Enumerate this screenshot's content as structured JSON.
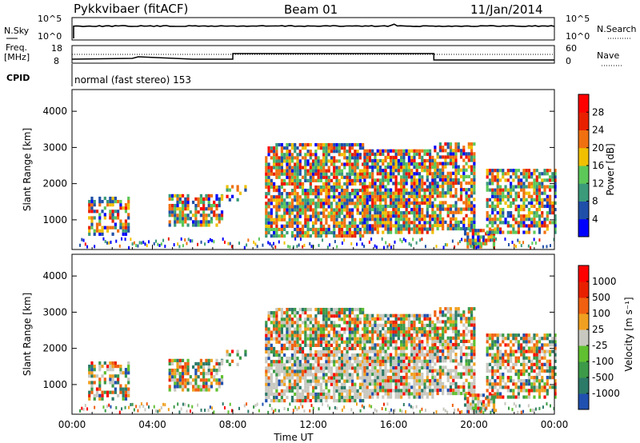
{
  "header": {
    "radar": "Pykkvibaer (fitACF)",
    "beam": "Beam 01",
    "date": "11/Jan/2014"
  },
  "strip": {
    "nsky_label": "N.Sky",
    "nsky_ticks": [
      "10^5",
      "10^0"
    ],
    "nsearch_label": "N.Search",
    "nsearch_ticks": [
      "10^5",
      "10^0"
    ],
    "freq_label_1": "Freq.",
    "freq_label_2": "[MHz]",
    "freq_ticks": [
      "18",
      "8"
    ],
    "nave_label": "Nave",
    "nave_ticks": [
      "60",
      "0"
    ],
    "cpid_label": "CPID",
    "cpid_text": "normal (fast stereo) 153"
  },
  "chart_data": [
    {
      "type": "heatmap",
      "panel": "power",
      "xlabel": "Time UT",
      "ylabel": "Slant Range [km]",
      "ylim": [
        180,
        4600
      ],
      "xlim": [
        0,
        24
      ],
      "yticks": [
        "1000",
        "2000",
        "3000",
        "4000"
      ],
      "colorbar_label": "Power [dB]",
      "colorbar_ticks": [
        "28",
        "24",
        "20",
        "16",
        "12",
        "8",
        "4"
      ],
      "colorbar_colors": [
        "#0000ff",
        "#1f4fa8",
        "#3a9a7a",
        "#5cc858",
        "#f0c000",
        "#f07010",
        "#e82000",
        "#ff0000"
      ],
      "regions": [
        {
          "t": [
            0.8,
            2.8
          ],
          "r": [
            700,
            1700
          ],
          "level": "mixed"
        },
        {
          "t": [
            4.8,
            7.5
          ],
          "r": [
            900,
            1800
          ],
          "level": "mixed"
        },
        {
          "t": [
            9.5,
            20.0
          ],
          "r": [
            700,
            3200
          ],
          "level": "strong"
        },
        {
          "t": [
            20.5,
            24.0
          ],
          "r": [
            700,
            2500
          ],
          "level": "strong"
        }
      ]
    },
    {
      "type": "heatmap",
      "panel": "velocity",
      "xlabel": "Time UT",
      "ylabel": "Slant Range [km]",
      "ylim": [
        180,
        4600
      ],
      "xlim": [
        0,
        24
      ],
      "yticks": [
        "1000",
        "2000",
        "3000",
        "4000"
      ],
      "xticks": [
        "00:00",
        "04:00",
        "08:00",
        "12:00",
        "16:00",
        "20:00",
        "00:00"
      ],
      "colorbar_label": "Velocity [m s⁻¹]",
      "colorbar_ticks": [
        "1000",
        "500",
        "100",
        "25",
        "-25",
        "-100",
        "-500",
        "-1000"
      ],
      "colorbar_colors": [
        "#2050b0",
        "#2c7a68",
        "#3c9a48",
        "#60c030",
        "#c8c8c0",
        "#f0a020",
        "#f06010",
        "#e82000",
        "#ff0000"
      ]
    }
  ]
}
